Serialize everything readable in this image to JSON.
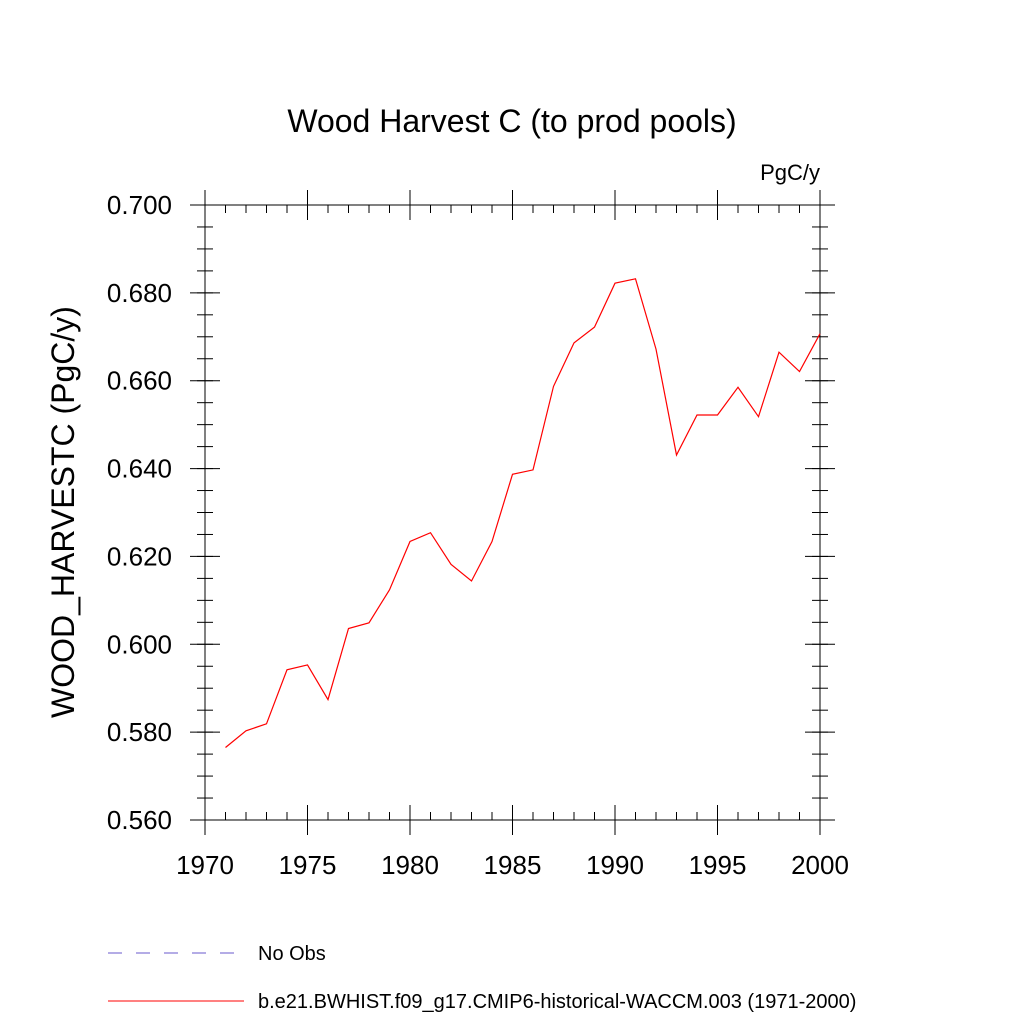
{
  "chart_data": {
    "type": "line",
    "title": "Wood Harvest C (to prod pools)",
    "units_label": "PgC/y",
    "ylabel": "WOOD_HARVESTC  (PgC/y)",
    "xlabel": "",
    "xlim": [
      1970,
      2000
    ],
    "ylim": [
      0.56,
      0.7
    ],
    "xticks": [
      1970,
      1975,
      1980,
      1985,
      1990,
      1995,
      2000
    ],
    "xtick_labels": [
      "1970",
      "1975",
      "1980",
      "1985",
      "1990",
      "1995",
      "2000"
    ],
    "yticks": [
      0.56,
      0.58,
      0.6,
      0.62,
      0.64,
      0.66,
      0.68,
      0.7
    ],
    "ytick_labels": [
      "0.560",
      "0.580",
      "0.600",
      "0.620",
      "0.640",
      "0.660",
      "0.680",
      "0.700"
    ],
    "x_minor_step": 1,
    "y_minor_step": 0.005,
    "legend_position": "bottom-left",
    "series": [
      {
        "name": "b.e21.BWHIST.f09_g17.CMIP6-historical-WACCM.003 (1971-2000)",
        "color": "#ff0000",
        "style": "solid",
        "x": [
          1971,
          1972,
          1973,
          1974,
          1975,
          1976,
          1977,
          1978,
          1979,
          1980,
          1981,
          1982,
          1983,
          1984,
          1985,
          1986,
          1987,
          1988,
          1989,
          1990,
          1991,
          1992,
          1993,
          1994,
          1995,
          1996,
          1997,
          1998,
          1999,
          2000
        ],
        "values": [
          0.5765,
          0.5803,
          0.5819,
          0.5942,
          0.5953,
          0.5874,
          0.6036,
          0.6049,
          0.6124,
          0.6234,
          0.6254,
          0.6182,
          0.6144,
          0.6234,
          0.6387,
          0.6397,
          0.6587,
          0.6686,
          0.6722,
          0.6822,
          0.6832,
          0.6672,
          0.6431,
          0.6522,
          0.6522,
          0.6585,
          0.6518,
          0.6665,
          0.6621,
          0.6707
        ]
      }
    ],
    "legend": [
      {
        "label": "No Obs",
        "color": "#6a5acd",
        "style": "dashed"
      },
      {
        "label": "b.e21.BWHIST.f09_g17.CMIP6-historical-WACCM.003 (1971-2000)",
        "color": "#ff0000",
        "style": "solid"
      }
    ]
  }
}
